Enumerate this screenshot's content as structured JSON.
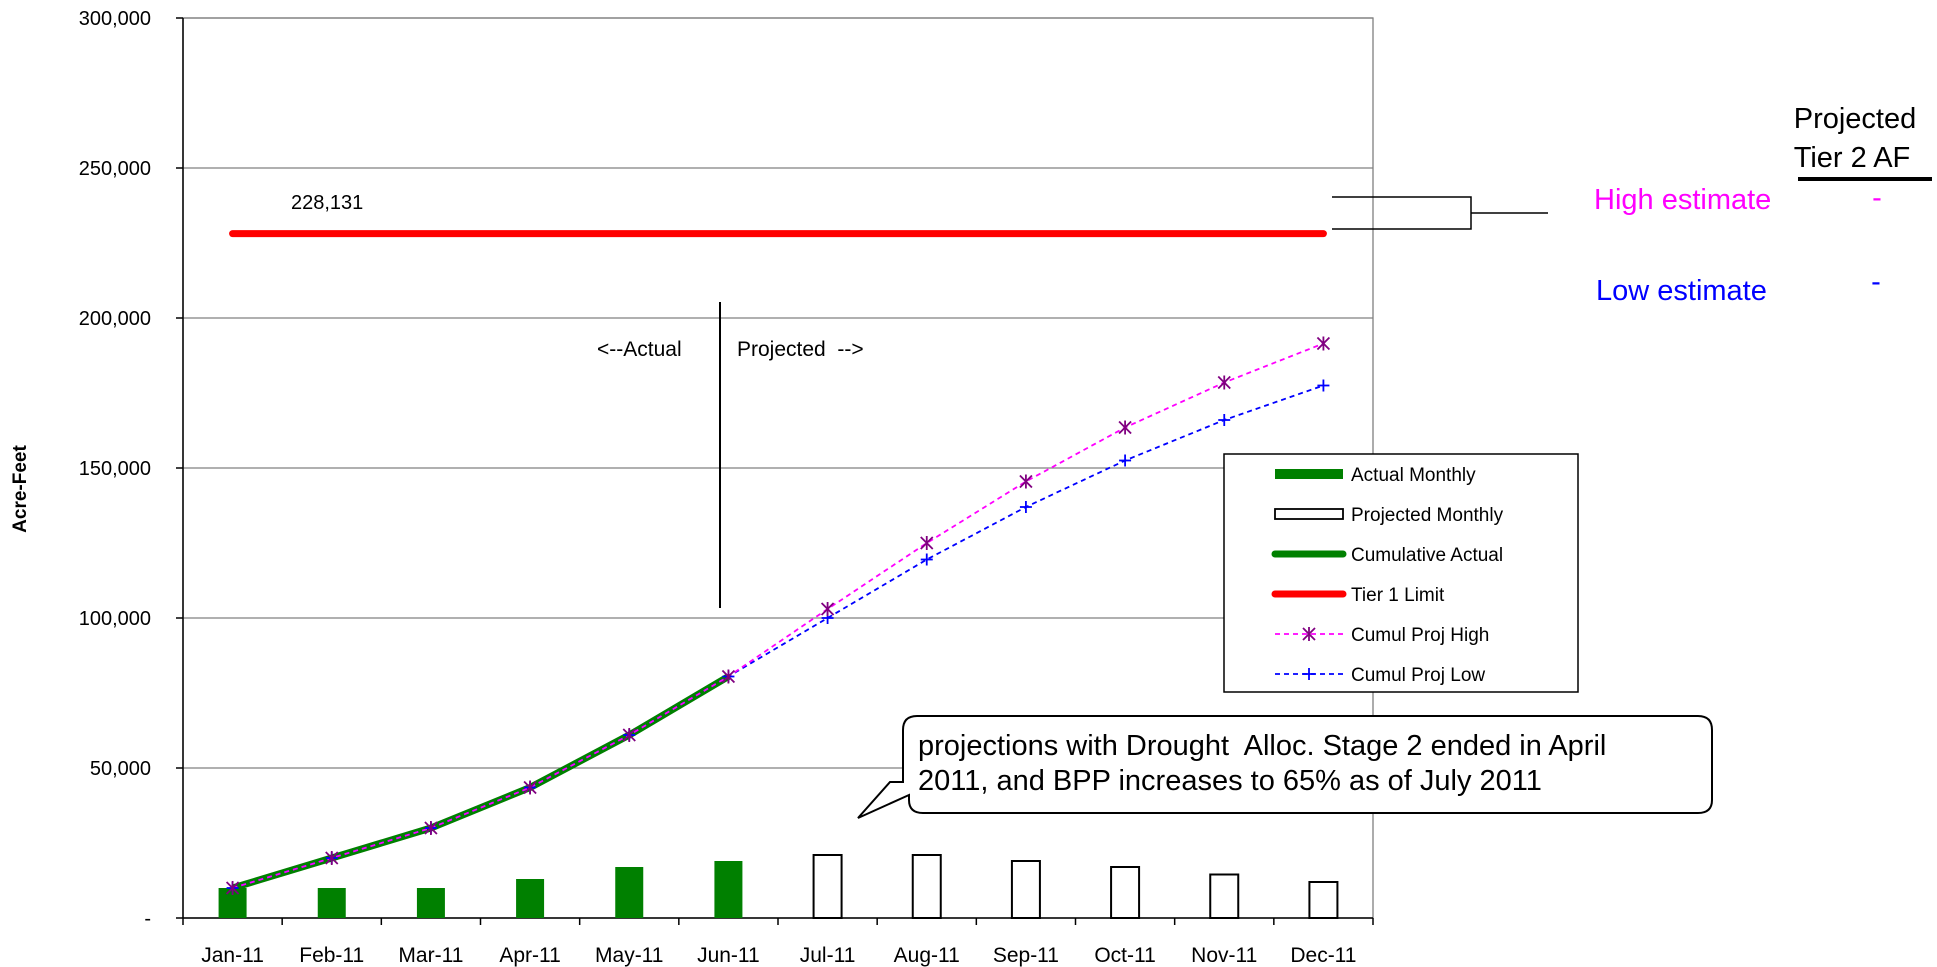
{
  "chart_data": {
    "type": "bar",
    "categories": [
      "Jan-11",
      "Feb-11",
      "Mar-11",
      "Apr-11",
      "May-11",
      "Jun-11",
      "Jul-11",
      "Aug-11",
      "Sep-11",
      "Oct-11",
      "Nov-11",
      "Dec-11"
    ],
    "ylabel": "Acre-Feet",
    "ylim": [
      0,
      300000
    ],
    "y_ticks": [
      0,
      50000,
      100000,
      150000,
      200000,
      250000,
      300000
    ],
    "y_tick_labels": [
      "-",
      "50,000",
      "100,000",
      "150,000",
      "200,000",
      "250,000",
      "300,000"
    ],
    "grid": true,
    "legend_position": "right",
    "series": [
      {
        "name": "Actual Monthly",
        "kind": "bar",
        "color": "#008000",
        "values": [
          10000,
          10000,
          10000,
          13000,
          17000,
          19000,
          null,
          null,
          null,
          null,
          null,
          null
        ]
      },
      {
        "name": "Projected Monthly",
        "kind": "bar-outline",
        "color": "#000000",
        "values": [
          null,
          null,
          null,
          null,
          null,
          null,
          21000,
          21000,
          19000,
          17000,
          14500,
          12000
        ]
      },
      {
        "name": "Cumulative Actual",
        "kind": "line",
        "color": "#008000",
        "values": [
          10000,
          20000,
          30000,
          43500,
          61000,
          80500,
          null,
          null,
          null,
          null,
          null,
          null
        ]
      },
      {
        "name": "Tier 1 Limit",
        "kind": "line",
        "color": "#ff0000",
        "values": [
          228131,
          228131,
          228131,
          228131,
          228131,
          228131,
          228131,
          228131,
          228131,
          228131,
          228131,
          228131
        ]
      },
      {
        "name": "Cumul Proj High",
        "kind": "dashed-line",
        "marker": "star",
        "color": "#ff00ff",
        "marker_color": "#800080",
        "values": [
          10000,
          20000,
          30000,
          43500,
          61000,
          80500,
          103000,
          125000,
          145500,
          163500,
          178500,
          191500
        ]
      },
      {
        "name": "Cumul Proj Low",
        "kind": "dashed-line",
        "marker": "plus",
        "color": "#0000ff",
        "values": [
          10000,
          20000,
          30000,
          43500,
          61000,
          80500,
          100000,
          119500,
          137000,
          152500,
          166000,
          177500
        ]
      }
    ],
    "annotations": {
      "tier1_value_label": "228,131",
      "actual_label": "<--Actual",
      "projected_label": "Projected  -->",
      "callout_line1": "projections with Drought  Alloc. Stage 2 ended in April",
      "callout_line2": "2011, and BPP increases to 65% as of July 2011"
    },
    "side_panel": {
      "header_line1": "Projected",
      "header_line2": "Tier 2 AF",
      "high_label": "High estimate",
      "high_value": "-",
      "high_color": "#ff00ff",
      "low_label": "Low estimate",
      "low_value": "-",
      "low_color": "#0000ff"
    }
  }
}
